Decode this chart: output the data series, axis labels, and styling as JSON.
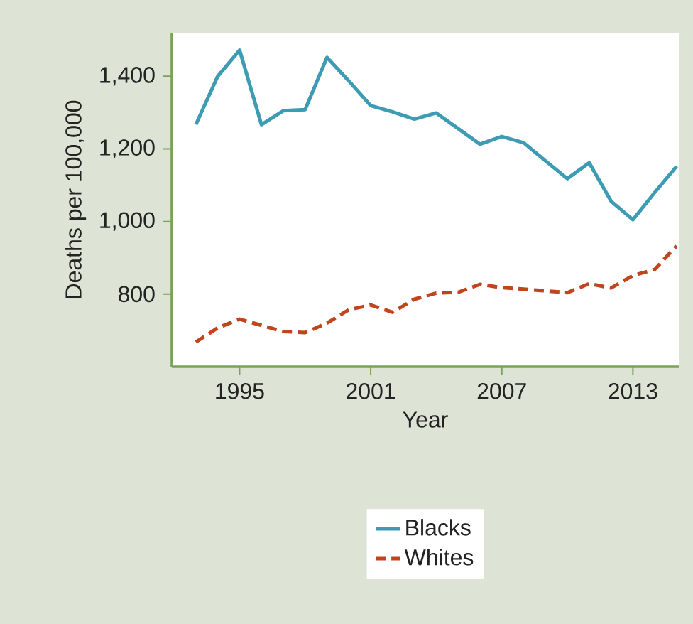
{
  "chart_data": {
    "type": "line",
    "xlabel": "Year",
    "ylabel": "Deaths per 100,000",
    "x": [
      1993,
      1994,
      1995,
      1996,
      1997,
      1998,
      1999,
      2000,
      2001,
      2002,
      2003,
      2004,
      2005,
      2006,
      2007,
      2008,
      2009,
      2010,
      2011,
      2012,
      2013,
      2014,
      2015
    ],
    "series": [
      {
        "name": "Blacks",
        "color": "#3d9bb3",
        "line_style": "solid",
        "values": [
          1267,
          1400,
          1472,
          1267,
          1305,
          1308,
          1452,
          1387,
          1319,
          1302,
          1282,
          1299,
          1256,
          1213,
          1234,
          1217,
          1167,
          1118,
          1162,
          1056,
          1005,
          1080,
          1152
        ]
      },
      {
        "name": "Whites",
        "color": "#c0441c",
        "line_style": "dashed",
        "values": [
          668,
          707,
          731,
          714,
          697,
          694,
          720,
          757,
          770,
          750,
          786,
          803,
          805,
          827,
          818,
          814,
          809,
          804,
          829,
          817,
          851,
          868,
          933
        ]
      }
    ],
    "xlim": [
      1991.9,
      2015.1
    ],
    "ylim": [
      600,
      1520
    ],
    "xticks": [
      1995,
      2001,
      2007,
      2013
    ],
    "yticks": [
      {
        "value": 800,
        "label": "800"
      },
      {
        "value": 1000,
        "label": "1,000"
      },
      {
        "value": 1200,
        "label": "1,200"
      },
      {
        "value": 1400,
        "label": "1,400"
      }
    ],
    "legend": "bottom",
    "grid": false,
    "marker": "none"
  }
}
